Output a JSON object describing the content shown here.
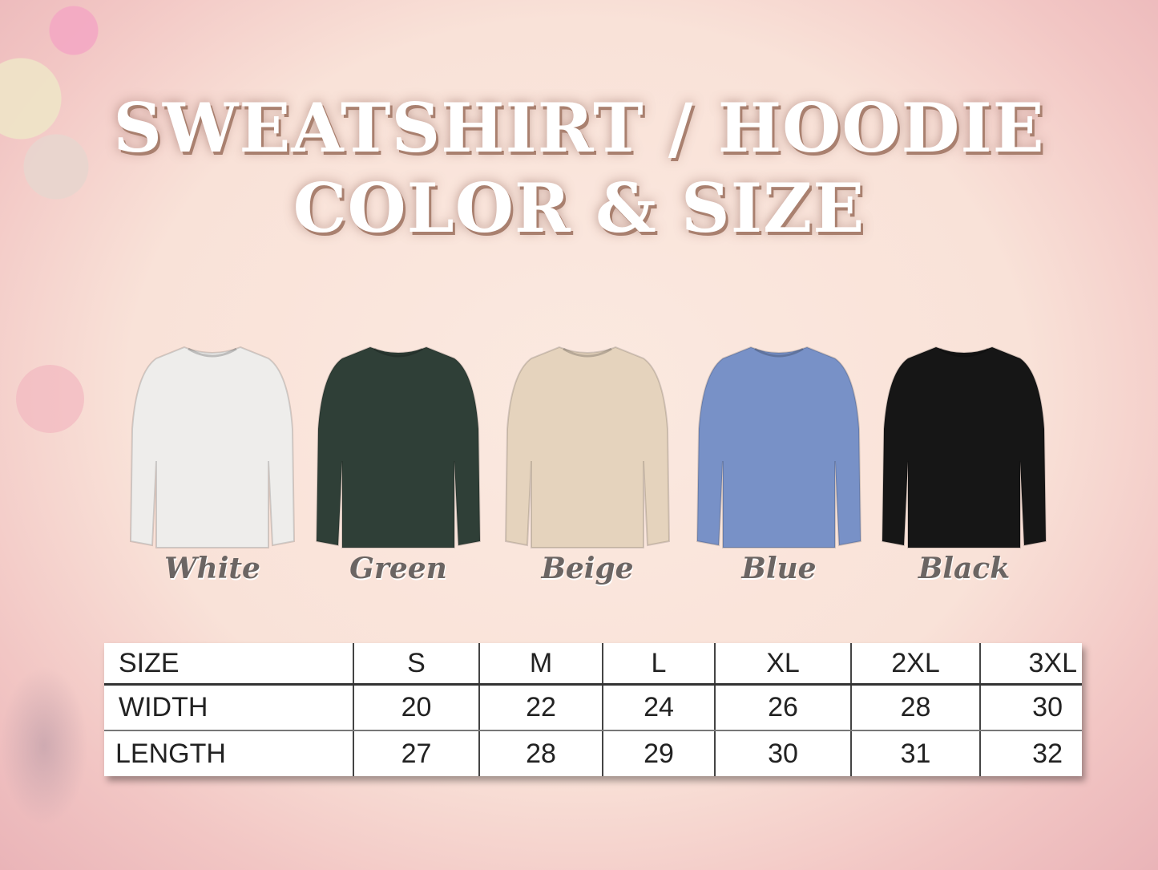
{
  "title": {
    "line1": "SWEATSHIRT / HOODIE",
    "line2": "COLOR & SIZE"
  },
  "colors": [
    {
      "name": "White",
      "hex": "#eeedeb"
    },
    {
      "name": "Green",
      "hex": "#2f3f37"
    },
    {
      "name": "Beige",
      "hex": "#e5d3bd"
    },
    {
      "name": "Blue",
      "hex": "#7891c7"
    },
    {
      "name": "Black",
      "hex": "#161616"
    }
  ],
  "size_table": {
    "header": [
      "SIZE",
      "S",
      "M",
      "L",
      "XL",
      "2XL",
      "3XL"
    ],
    "rows": [
      [
        "WIDTH",
        "20",
        "22",
        "24",
        "26",
        "28",
        "30"
      ],
      [
        "LENGTH",
        "27",
        "28",
        "29",
        "30",
        "31",
        "32"
      ]
    ]
  }
}
